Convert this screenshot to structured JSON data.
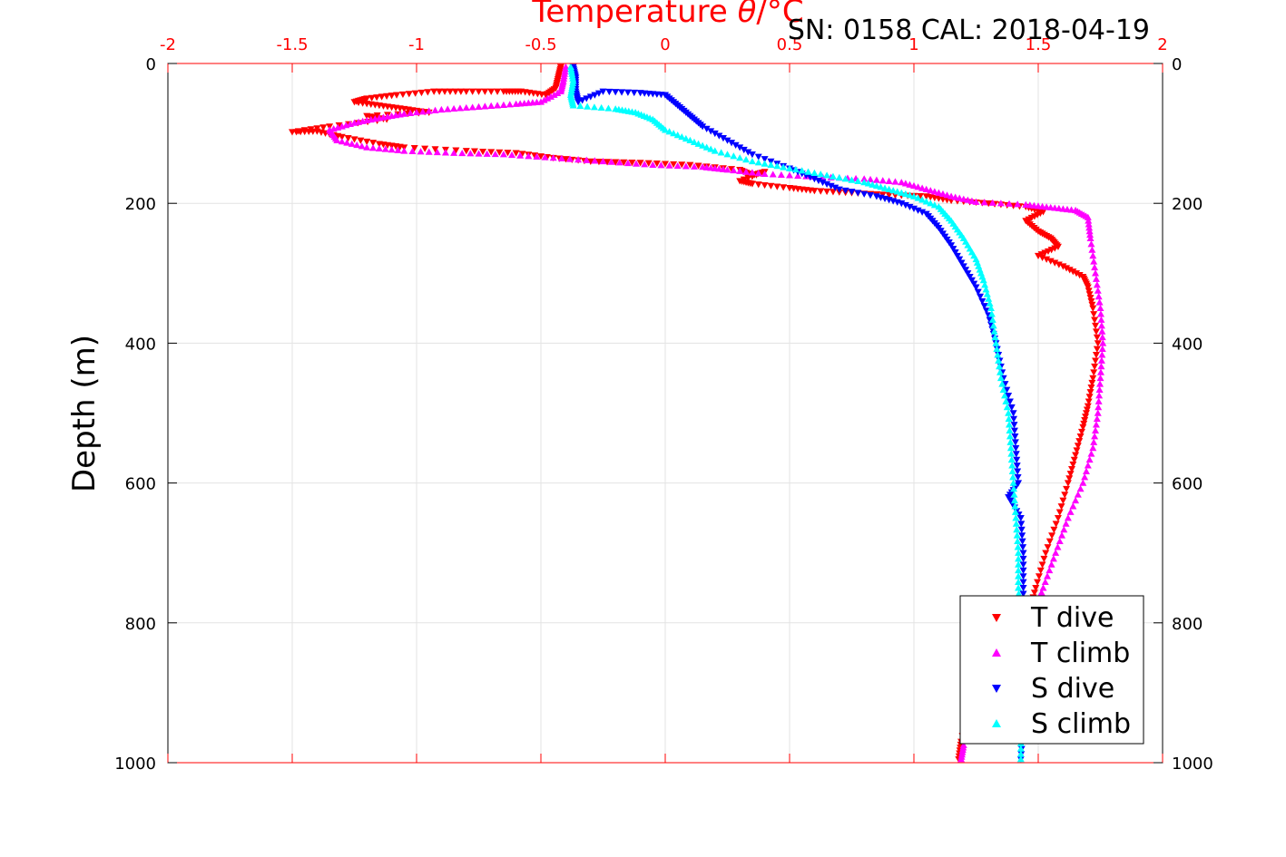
{
  "chart_data": {
    "type": "scatter",
    "title": "SN: 0158  CAL: 2018-04-19",
    "xlabel_main": "Temperature ",
    "xlabel_theta": "θ",
    "xlabel_unit": "/°C",
    "ylabel": "Depth (m)",
    "xlim": [
      -2,
      2
    ],
    "ylim": [
      0,
      1000
    ],
    "y_reversed": true,
    "grid": true,
    "legend_position": "bottom-right",
    "x_ticks": [
      "-2",
      "-1.5",
      "-1",
      "-0.5",
      "0",
      "0.5",
      "1",
      "1.5",
      "2"
    ],
    "x_tick_values": [
      -2,
      -1.5,
      -1,
      -0.5,
      0,
      0.5,
      1,
      1.5,
      2
    ],
    "y_ticks": [
      "0",
      "200",
      "400",
      "600",
      "800",
      "1000"
    ],
    "y_tick_values": [
      0,
      200,
      400,
      600,
      800,
      1000
    ],
    "series": [
      {
        "name": "T dive",
        "marker": "triangle-down",
        "color": "#ff0000",
        "points": [
          [
            -0.42,
            5
          ],
          [
            -0.43,
            20
          ],
          [
            -0.44,
            35
          ],
          [
            -0.48,
            45
          ],
          [
            -0.58,
            40
          ],
          [
            -0.65,
            40
          ],
          [
            -0.8,
            40
          ],
          [
            -0.93,
            40
          ],
          [
            -1.08,
            45
          ],
          [
            -1.2,
            50
          ],
          [
            -1.25,
            55
          ],
          [
            -1.15,
            60
          ],
          [
            -1.05,
            65
          ],
          [
            -0.95,
            70
          ],
          [
            -1.2,
            75
          ],
          [
            -1.12,
            80
          ],
          [
            -1.35,
            90
          ],
          [
            -1.5,
            98
          ],
          [
            -1.4,
            97
          ],
          [
            -1.3,
            105
          ],
          [
            -1.15,
            115
          ],
          [
            -1.05,
            120
          ],
          [
            -0.8,
            125
          ],
          [
            -0.6,
            128
          ],
          [
            -0.45,
            135
          ],
          [
            -0.3,
            140
          ],
          [
            -0.1,
            142
          ],
          [
            0.1,
            145
          ],
          [
            0.3,
            152
          ],
          [
            0.35,
            160
          ],
          [
            0.4,
            155
          ],
          [
            0.3,
            168
          ],
          [
            0.35,
            172
          ],
          [
            0.5,
            178
          ],
          [
            0.6,
            182
          ],
          [
            0.75,
            185
          ],
          [
            0.9,
            188
          ],
          [
            1.05,
            190
          ],
          [
            1.15,
            196
          ],
          [
            1.3,
            200
          ],
          [
            1.45,
            205
          ],
          [
            1.52,
            212
          ],
          [
            1.45,
            225
          ],
          [
            1.5,
            240
          ],
          [
            1.55,
            250
          ],
          [
            1.58,
            262
          ],
          [
            1.5,
            275
          ],
          [
            1.6,
            290
          ],
          [
            1.68,
            305
          ],
          [
            1.7,
            320
          ],
          [
            1.72,
            350
          ],
          [
            1.74,
            400
          ],
          [
            1.72,
            450
          ],
          [
            1.7,
            490
          ],
          [
            1.68,
            520
          ],
          [
            1.65,
            560
          ],
          [
            1.62,
            600
          ],
          [
            1.58,
            650
          ],
          [
            1.53,
            700
          ],
          [
            1.49,
            750
          ],
          [
            1.46,
            790
          ],
          [
            1.4,
            820
          ],
          [
            1.3,
            860
          ],
          [
            1.22,
            920
          ],
          [
            1.19,
            970
          ],
          [
            1.18,
            995
          ]
        ]
      },
      {
        "name": "T climb",
        "marker": "triangle-up",
        "color": "#ff00ff",
        "points": [
          [
            -0.4,
            5
          ],
          [
            -0.41,
            25
          ],
          [
            -0.42,
            40
          ],
          [
            -0.5,
            55
          ],
          [
            -0.6,
            58
          ],
          [
            -0.75,
            62
          ],
          [
            -0.9,
            66
          ],
          [
            -1.05,
            72
          ],
          [
            -1.15,
            78
          ],
          [
            -1.25,
            85
          ],
          [
            -1.35,
            95
          ],
          [
            -1.32,
            110
          ],
          [
            -1.2,
            120
          ],
          [
            -1.05,
            125
          ],
          [
            -0.85,
            128
          ],
          [
            -0.65,
            130
          ],
          [
            -0.45,
            135
          ],
          [
            -0.25,
            140
          ],
          [
            -0.05,
            145
          ],
          [
            0.15,
            148
          ],
          [
            0.25,
            152
          ],
          [
            0.4,
            158
          ],
          [
            0.6,
            162
          ],
          [
            0.8,
            165
          ],
          [
            0.95,
            170
          ],
          [
            1.05,
            180
          ],
          [
            1.15,
            190
          ],
          [
            1.25,
            198
          ],
          [
            1.45,
            202
          ],
          [
            1.55,
            206
          ],
          [
            1.65,
            210
          ],
          [
            1.7,
            220
          ],
          [
            1.71,
            250
          ],
          [
            1.73,
            300
          ],
          [
            1.75,
            350
          ],
          [
            1.76,
            400
          ],
          [
            1.75,
            450
          ],
          [
            1.74,
            500
          ],
          [
            1.72,
            550
          ],
          [
            1.68,
            600
          ],
          [
            1.62,
            650
          ],
          [
            1.57,
            700
          ],
          [
            1.52,
            750
          ],
          [
            1.48,
            790
          ],
          [
            1.4,
            830
          ],
          [
            1.32,
            870
          ],
          [
            1.25,
            920
          ],
          [
            1.2,
            975
          ],
          [
            1.19,
            995
          ]
        ]
      },
      {
        "name": "S dive",
        "marker": "triangle-down",
        "color": "#0000ff",
        "points": [
          [
            -0.37,
            5
          ],
          [
            -0.36,
            20
          ],
          [
            -0.36,
            40
          ],
          [
            -0.35,
            55
          ],
          [
            -0.25,
            40
          ],
          [
            -0.1,
            42
          ],
          [
            0.0,
            45
          ],
          [
            0.05,
            60
          ],
          [
            0.1,
            75
          ],
          [
            0.15,
            90
          ],
          [
            0.25,
            110
          ],
          [
            0.35,
            130
          ],
          [
            0.5,
            150
          ],
          [
            0.6,
            165
          ],
          [
            0.7,
            180
          ],
          [
            0.85,
            190
          ],
          [
            0.95,
            200
          ],
          [
            1.05,
            215
          ],
          [
            1.1,
            235
          ],
          [
            1.15,
            260
          ],
          [
            1.2,
            290
          ],
          [
            1.25,
            320
          ],
          [
            1.3,
            360
          ],
          [
            1.33,
            400
          ],
          [
            1.36,
            450
          ],
          [
            1.4,
            500
          ],
          [
            1.41,
            550
          ],
          [
            1.42,
            600
          ],
          [
            1.38,
            620
          ],
          [
            1.43,
            650
          ],
          [
            1.44,
            700
          ],
          [
            1.44,
            750
          ],
          [
            1.44,
            800
          ],
          [
            1.44,
            850
          ],
          [
            1.44,
            900
          ],
          [
            1.44,
            950
          ],
          [
            1.43,
            995
          ]
        ]
      },
      {
        "name": "S climb",
        "marker": "triangle-up",
        "color": "#00ffff",
        "points": [
          [
            -0.38,
            5
          ],
          [
            -0.37,
            25
          ],
          [
            -0.38,
            45
          ],
          [
            -0.37,
            60
          ],
          [
            -0.2,
            65
          ],
          [
            -0.12,
            70
          ],
          [
            -0.05,
            80
          ],
          [
            0.0,
            95
          ],
          [
            0.1,
            110
          ],
          [
            0.2,
            125
          ],
          [
            0.35,
            140
          ],
          [
            0.5,
            150
          ],
          [
            0.65,
            160
          ],
          [
            0.8,
            170
          ],
          [
            0.9,
            180
          ],
          [
            1.0,
            190
          ],
          [
            1.1,
            205
          ],
          [
            1.15,
            225
          ],
          [
            1.2,
            250
          ],
          [
            1.25,
            280
          ],
          [
            1.28,
            310
          ],
          [
            1.31,
            350
          ],
          [
            1.33,
            400
          ],
          [
            1.35,
            450
          ],
          [
            1.38,
            500
          ],
          [
            1.39,
            550
          ],
          [
            1.4,
            600
          ],
          [
            1.41,
            650
          ],
          [
            1.42,
            700
          ],
          [
            1.42,
            750
          ],
          [
            1.43,
            800
          ],
          [
            1.43,
            850
          ],
          [
            1.43,
            900
          ],
          [
            1.43,
            950
          ],
          [
            1.43,
            995
          ]
        ]
      }
    ]
  }
}
